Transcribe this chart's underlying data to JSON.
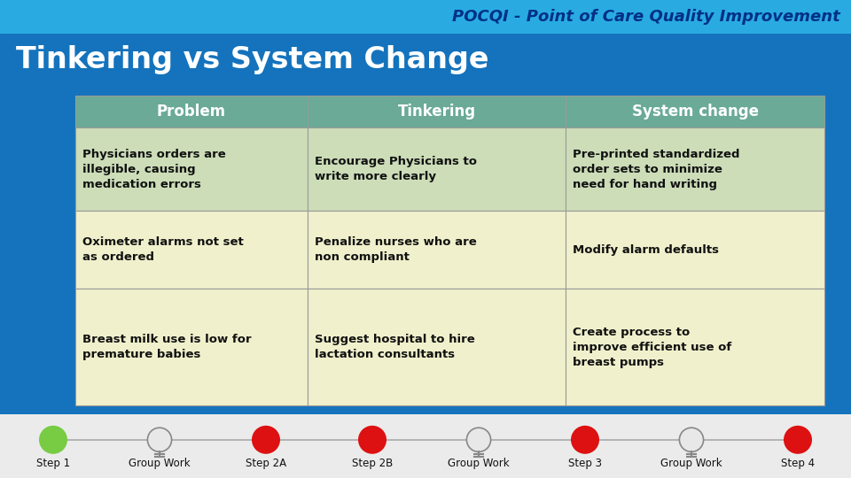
{
  "title_bar_color": "#29ABE2",
  "title_text": "POCQI - Point of Care Quality Improvement",
  "title_text_color": "#003087",
  "subtitle_bar_color": "#1473BC",
  "subtitle_text": "Tinkering vs System Change",
  "subtitle_text_color": "#FFFFFF",
  "bg_color": "#1473BC",
  "bottom_bar_color": "#EBEBEB",
  "header_bg": "#6aaa96",
  "header_text_color": "#FFFFFF",
  "row1_bg": "#ccddb8",
  "row2_bg": "#f0f0cc",
  "row3_bg": "#f0f0cc",
  "table_border_color": "#999999",
  "headers": [
    "Problem",
    "Tinkering",
    "System change"
  ],
  "row1": [
    "Physicians orders are\nillegible, causing\nmedication errors",
    "Encourage Physicians to\nwrite more clearly",
    "Pre-printed standardized\norder sets to minimize\nneed for hand writing"
  ],
  "row2": [
    "Oximeter alarms not set\nas ordered",
    "Penalize nurses who are\nnon compliant",
    "Modify alarm defaults"
  ],
  "row3": [
    "Breast milk use is low for\npremature babies",
    "Suggest hospital to hire\nlactation consultants",
    "Create process to\nimprove efficient use of\nbreast pumps"
  ],
  "bottom_labels": [
    "Step 1",
    "Group Work",
    "Step 2A",
    "Step 2B",
    "Group Work",
    "Step 3",
    "Group Work",
    "Step 4"
  ],
  "bottom_circle_colors": [
    "#77CC44",
    "bulb",
    "#DD1111",
    "#DD1111",
    "bulb",
    "#DD1111",
    "bulb",
    "#DD1111"
  ],
  "fig_width": 9.6,
  "fig_height": 5.4,
  "dpi": 100
}
